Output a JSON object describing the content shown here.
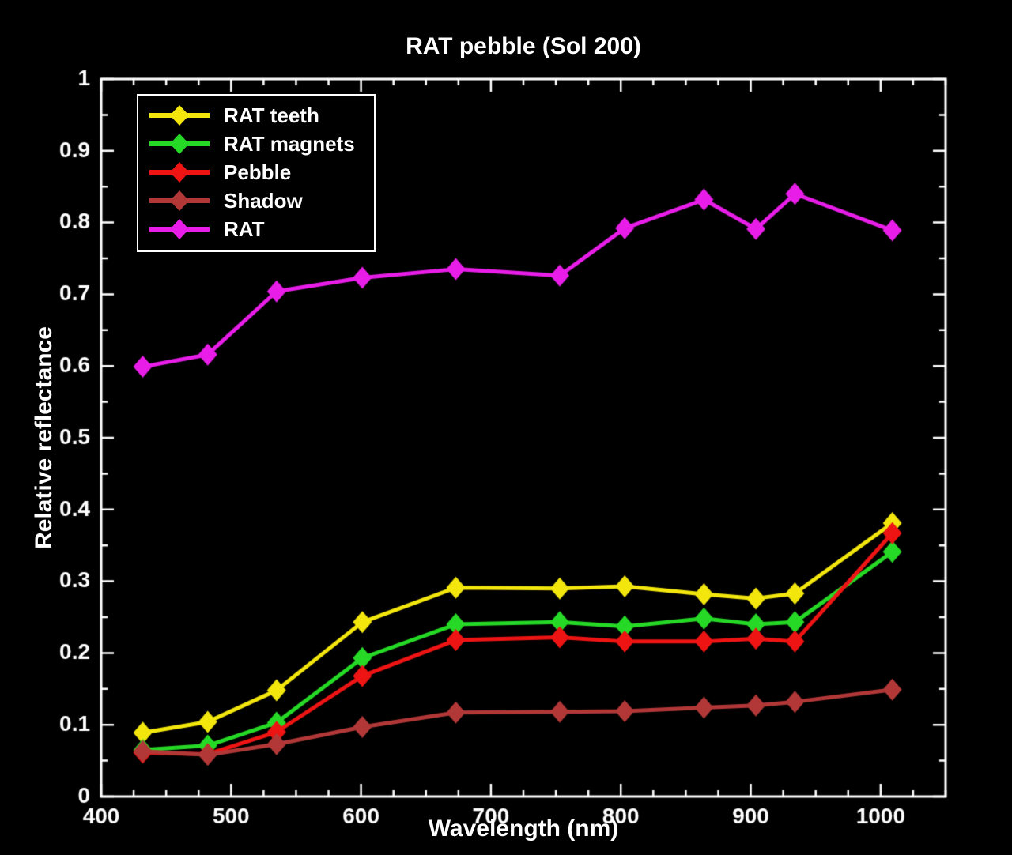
{
  "chart_data": {
    "type": "line",
    "title": "RAT pebble (Sol 200)",
    "xlabel": "Wavelength (nm)",
    "ylabel": "Relative reflectance",
    "xlim": [
      400,
      1050
    ],
    "ylim": [
      0,
      1
    ],
    "xticks": [
      400,
      500,
      600,
      700,
      800,
      900,
      1000
    ],
    "xtick_labels": [
      "400",
      "500",
      "600",
      "700",
      "800",
      "900",
      "1000"
    ],
    "yticks": [
      0,
      0.1,
      0.2,
      0.3,
      0.4,
      0.5,
      0.6,
      0.7,
      0.8,
      0.9,
      1
    ],
    "ytick_labels": [
      "0",
      "0.1",
      "0.2",
      "0.3",
      "0.4",
      "0.5",
      "0.6",
      "0.7",
      "0.8",
      "0.9",
      "1"
    ],
    "grid": false,
    "legend_position": "top-left",
    "colors": {
      "background": "#000000",
      "axis": "#ffffff"
    },
    "x": [
      432,
      482,
      535,
      601,
      673,
      753,
      803,
      864,
      904,
      934,
      1009
    ],
    "series": [
      {
        "name": "RAT teeth",
        "color": "#f2e60d",
        "values": [
          0.089,
          0.104,
          0.148,
          0.243,
          0.291,
          0.29,
          0.293,
          0.282,
          0.276,
          0.283,
          0.381
        ]
      },
      {
        "name": "RAT magnets",
        "color": "#26d926",
        "values": [
          0.065,
          0.071,
          0.103,
          0.193,
          0.24,
          0.243,
          0.237,
          0.248,
          0.24,
          0.243,
          0.341
        ]
      },
      {
        "name": "Pebble",
        "color": "#ee1414",
        "values": [
          0.061,
          0.059,
          0.09,
          0.168,
          0.218,
          0.222,
          0.216,
          0.216,
          0.22,
          0.216,
          0.367
        ]
      },
      {
        "name": "Shadow",
        "color": "#b23838",
        "values": [
          0.063,
          0.058,
          0.073,
          0.097,
          0.117,
          0.118,
          0.119,
          0.124,
          0.127,
          0.132,
          0.149
        ]
      },
      {
        "name": "RAT",
        "color": "#e81ee8",
        "values": [
          0.599,
          0.616,
          0.704,
          0.723,
          0.735,
          0.726,
          0.792,
          0.832,
          0.791,
          0.84,
          0.789
        ]
      }
    ]
  }
}
